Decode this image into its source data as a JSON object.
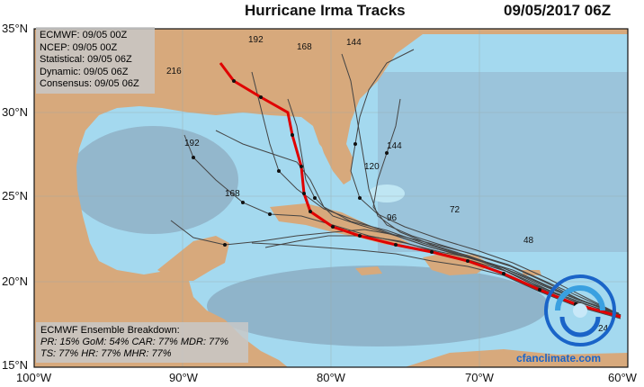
{
  "header": {
    "title": "Hurricane Irma Tracks",
    "datetime": "09/05/2017 06Z"
  },
  "legend": {
    "items": [
      "ECMWF: 09/05 00Z",
      "NCEP: 09/05 00Z",
      "Statistical: 09/05 06Z",
      "Dynamic: 09/05 06Z",
      "Consensus: 09/05 06Z"
    ]
  },
  "breakdown": {
    "title": "ECMWF Ensemble Breakdown:",
    "line1": "PR: 15% GoM: 54% CAR: 77% MDR: 77%",
    "line2": "TS: 77% HR: 77% MHR: 77%"
  },
  "axes": {
    "lat_labels": [
      "35°N",
      "30°N",
      "25°N",
      "20°N",
      "15°N"
    ],
    "lon_labels": [
      "100°W",
      "90°W",
      "80°W",
      "70°W",
      "60°W"
    ]
  },
  "site": "cfanclimate.com",
  "logo_text": "CLIMATE FORECAST APPLICATIONS NETWORK",
  "colors": {
    "land": "#d7a97c",
    "water": "#9fd6ea",
    "consensus": "#e00000",
    "ensemble": "#444444"
  },
  "track_labels": [
    "192",
    "168",
    "144",
    "120",
    "96",
    "72",
    "48",
    "24",
    "216"
  ]
}
